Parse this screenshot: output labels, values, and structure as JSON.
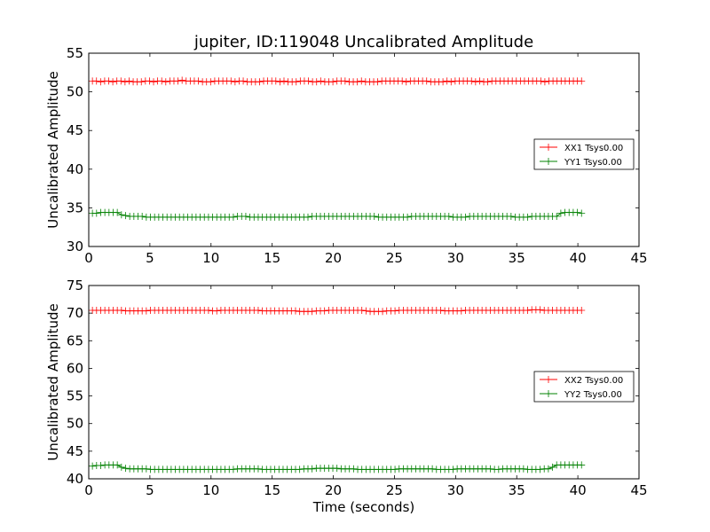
{
  "figure": {
    "title": "jupiter, ID:119048 Uncalibrated Amplitude",
    "xlabel": "Time (seconds)"
  },
  "chart_data": [
    {
      "type": "line",
      "name": "top-panel",
      "ylabel": "Uncalibrated Amplitude",
      "xlim": [
        0,
        45
      ],
      "ylim": [
        30,
        55
      ],
      "xticks": [
        0,
        5,
        10,
        15,
        20,
        25,
        30,
        35,
        40,
        45
      ],
      "yticks": [
        30,
        35,
        40,
        45,
        50,
        55
      ],
      "legend_position": "center-right",
      "x_range": [
        0.3,
        40.3
      ],
      "series": [
        {
          "name": "XX1 Tsys0.00",
          "color": "#ff0000",
          "marker": "plus",
          "values": [
            51.4,
            51.4,
            51.3,
            51.4,
            51.4,
            51.3,
            51.4,
            51.4,
            51.3,
            51.4,
            51.3,
            51.3,
            51.3,
            51.4,
            51.4,
            51.3,
            51.4,
            51.4,
            51.3,
            51.4,
            51.4,
            51.4,
            51.5,
            51.4,
            51.4,
            51.4,
            51.4,
            51.3,
            51.3,
            51.3,
            51.4,
            51.4,
            51.4,
            51.4,
            51.4,
            51.3,
            51.4,
            51.4,
            51.3,
            51.3,
            51.3,
            51.3,
            51.4,
            51.4,
            51.4,
            51.4,
            51.3,
            51.4,
            51.3,
            51.3,
            51.3,
            51.4,
            51.4,
            51.4,
            51.3,
            51.3,
            51.4,
            51.3,
            51.3,
            51.3,
            51.4,
            51.4,
            51.4,
            51.3,
            51.3,
            51.3,
            51.4,
            51.3,
            51.3,
            51.3,
            51.3,
            51.4,
            51.4,
            51.4,
            51.4,
            51.4,
            51.4,
            51.3,
            51.4,
            51.4,
            51.4,
            51.4,
            51.4,
            51.3,
            51.3,
            51.3,
            51.3,
            51.4,
            51.3,
            51.4,
            51.4,
            51.4,
            51.4,
            51.4,
            51.3,
            51.4,
            51.3,
            51.3,
            51.4,
            51.4,
            51.4,
            51.4,
            51.4,
            51.4,
            51.4,
            51.4,
            51.4,
            51.4,
            51.4,
            51.4,
            51.4,
            51.3,
            51.4,
            51.4,
            51.4,
            51.4,
            51.4,
            51.4,
            51.4,
            51.4,
            51.4
          ]
        },
        {
          "name": "YY1 Tsys0.00",
          "color": "#008000",
          "marker": "plus",
          "values": [
            34.3,
            34.3,
            34.4,
            34.4,
            34.4,
            34.4,
            34.4,
            34.1,
            34.0,
            33.9,
            33.9,
            33.9,
            33.9,
            33.8,
            33.8,
            33.8,
            33.8,
            33.8,
            33.8,
            33.8,
            33.8,
            33.8,
            33.8,
            33.8,
            33.8,
            33.8,
            33.8,
            33.8,
            33.8,
            33.8,
            33.8,
            33.8,
            33.8,
            33.8,
            33.8,
            33.9,
            33.9,
            33.9,
            33.8,
            33.8,
            33.8,
            33.8,
            33.8,
            33.8,
            33.8,
            33.8,
            33.8,
            33.8,
            33.8,
            33.8,
            33.8,
            33.8,
            33.8,
            33.9,
            33.9,
            33.9,
            33.9,
            33.9,
            33.9,
            33.9,
            33.9,
            33.9,
            33.9,
            33.9,
            33.9,
            33.9,
            33.9,
            33.9,
            33.9,
            33.8,
            33.8,
            33.8,
            33.8,
            33.8,
            33.8,
            33.8,
            33.8,
            33.9,
            33.9,
            33.9,
            33.9,
            33.9,
            33.9,
            33.9,
            33.9,
            33.9,
            33.9,
            33.8,
            33.8,
            33.8,
            33.8,
            33.9,
            33.9,
            33.9,
            33.9,
            33.9,
            33.9,
            33.9,
            33.9,
            33.9,
            33.9,
            33.9,
            33.8,
            33.8,
            33.8,
            33.8,
            33.9,
            33.9,
            33.9,
            33.9,
            33.9,
            33.9,
            33.9,
            34.3,
            34.4,
            34.4,
            34.4,
            34.4,
            34.3
          ]
        }
      ]
    },
    {
      "type": "line",
      "name": "bottom-panel",
      "ylabel": "Uncalibrated Amplitude",
      "xlim": [
        0,
        45
      ],
      "ylim": [
        40,
        75
      ],
      "xticks": [
        0,
        5,
        10,
        15,
        20,
        25,
        30,
        35,
        40,
        45
      ],
      "yticks": [
        40,
        45,
        50,
        55,
        60,
        65,
        70,
        75
      ],
      "legend_position": "center-right",
      "x_range": [
        0.3,
        40.3
      ],
      "series": [
        {
          "name": "XX2 Tsys0.00",
          "color": "#ff0000",
          "marker": "plus",
          "values": [
            70.5,
            70.5,
            70.5,
            70.5,
            70.5,
            70.5,
            70.5,
            70.5,
            70.4,
            70.4,
            70.4,
            70.4,
            70.4,
            70.4,
            70.5,
            70.5,
            70.5,
            70.5,
            70.5,
            70.5,
            70.5,
            70.5,
            70.5,
            70.5,
            70.5,
            70.5,
            70.5,
            70.5,
            70.5,
            70.4,
            70.4,
            70.5,
            70.5,
            70.5,
            70.5,
            70.5,
            70.5,
            70.5,
            70.5,
            70.5,
            70.5,
            70.4,
            70.4,
            70.4,
            70.4,
            70.4,
            70.4,
            70.4,
            70.4,
            70.4,
            70.3,
            70.3,
            70.3,
            70.3,
            70.4,
            70.4,
            70.4,
            70.5,
            70.5,
            70.5,
            70.5,
            70.5,
            70.5,
            70.5,
            70.5,
            70.5,
            70.4,
            70.3,
            70.3,
            70.3,
            70.3,
            70.4,
            70.4,
            70.4,
            70.5,
            70.5,
            70.5,
            70.5,
            70.5,
            70.5,
            70.5,
            70.5,
            70.5,
            70.5,
            70.5,
            70.4,
            70.4,
            70.4,
            70.4,
            70.4,
            70.5,
            70.5,
            70.5,
            70.5,
            70.5,
            70.5,
            70.5,
            70.5,
            70.5,
            70.5,
            70.5,
            70.5,
            70.5,
            70.5,
            70.5,
            70.5,
            70.6,
            70.6,
            70.6,
            70.5,
            70.5,
            70.5,
            70.5,
            70.5,
            70.5,
            70.5,
            70.5,
            70.5,
            70.5
          ]
        },
        {
          "name": "YY2 Tsys0.00",
          "color": "#008000",
          "marker": "plus",
          "values": [
            42.3,
            42.4,
            42.4,
            42.5,
            42.5,
            42.5,
            42.5,
            42.1,
            41.9,
            41.8,
            41.8,
            41.8,
            41.8,
            41.8,
            41.7,
            41.7,
            41.7,
            41.7,
            41.7,
            41.7,
            41.7,
            41.7,
            41.7,
            41.7,
            41.7,
            41.7,
            41.7,
            41.7,
            41.7,
            41.7,
            41.7,
            41.7,
            41.7,
            41.7,
            41.7,
            41.8,
            41.8,
            41.8,
            41.8,
            41.8,
            41.8,
            41.7,
            41.7,
            41.7,
            41.7,
            41.7,
            41.7,
            41.7,
            41.7,
            41.7,
            41.7,
            41.8,
            41.8,
            41.8,
            41.9,
            41.9,
            41.9,
            41.9,
            41.9,
            41.9,
            41.8,
            41.8,
            41.8,
            41.8,
            41.7,
            41.7,
            41.7,
            41.7,
            41.7,
            41.7,
            41.7,
            41.7,
            41.7,
            41.7,
            41.8,
            41.8,
            41.8,
            41.8,
            41.8,
            41.8,
            41.8,
            41.8,
            41.8,
            41.7,
            41.7,
            41.7,
            41.7,
            41.7,
            41.8,
            41.8,
            41.8,
            41.8,
            41.8,
            41.8,
            41.8,
            41.8,
            41.8,
            41.7,
            41.7,
            41.8,
            41.8,
            41.8,
            41.8,
            41.8,
            41.8,
            41.7,
            41.7,
            41.7,
            41.7,
            41.8,
            41.8,
            42.1,
            42.5,
            42.5,
            42.5,
            42.5,
            42.5,
            42.5,
            42.5
          ]
        }
      ]
    }
  ]
}
